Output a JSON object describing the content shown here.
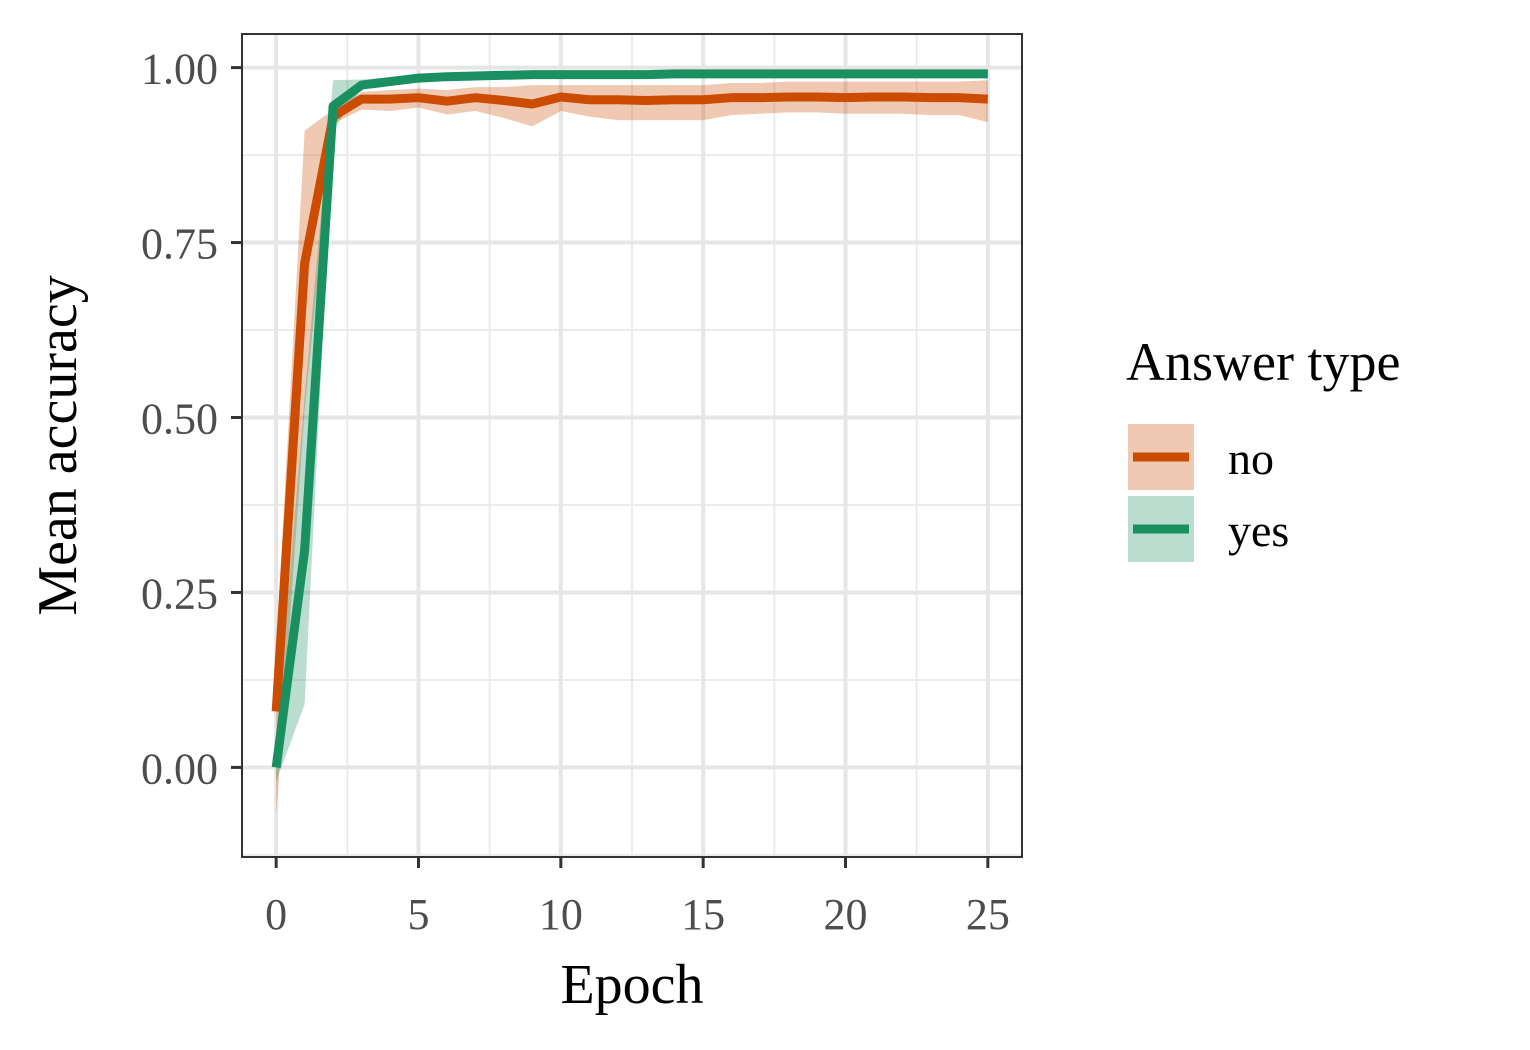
{
  "chart_data": {
    "type": "line",
    "xlabel": "Epoch",
    "ylabel": "Mean accuracy",
    "xlim": [
      -1.2,
      26.2
    ],
    "ylim": [
      -0.128,
      1.048
    ],
    "x_ticks": [
      0,
      5,
      10,
      15,
      20,
      25
    ],
    "x_tick_labels": [
      "0",
      "5",
      "10",
      "15",
      "20",
      "25"
    ],
    "y_ticks": [
      0,
      0.25,
      0.5,
      0.75,
      1.0
    ],
    "y_tick_labels": [
      "0.00",
      "0.25",
      "0.50",
      "0.75",
      "1.00"
    ],
    "grid": true,
    "legend": {
      "title": "Answer type",
      "placement": "right"
    },
    "x": [
      0,
      1,
      2,
      3,
      4,
      5,
      6,
      7,
      8,
      9,
      10,
      11,
      12,
      13,
      14,
      15,
      16,
      17,
      18,
      19,
      20,
      21,
      22,
      23,
      24,
      25
    ],
    "series": [
      {
        "name": "no",
        "color": "#cc4c02",
        "band_color": "#cc4c02",
        "values": [
          0.08,
          0.72,
          0.93,
          0.955,
          0.955,
          0.957,
          0.952,
          0.957,
          0.953,
          0.948,
          0.958,
          0.954,
          0.954,
          0.953,
          0.954,
          0.954,
          0.957,
          0.957,
          0.958,
          0.958,
          0.957,
          0.958,
          0.958,
          0.957,
          0.957,
          0.955
        ],
        "lower": [
          -0.07,
          0.51,
          0.92,
          0.94,
          0.938,
          0.943,
          0.933,
          0.938,
          0.928,
          0.916,
          0.938,
          0.93,
          0.925,
          0.925,
          0.925,
          0.925,
          0.932,
          0.934,
          0.936,
          0.936,
          0.934,
          0.934,
          0.934,
          0.932,
          0.932,
          0.922
        ],
        "upper": [
          0.17,
          0.91,
          0.94,
          0.965,
          0.968,
          0.97,
          0.968,
          0.972,
          0.972,
          0.975,
          0.975,
          0.975,
          0.975,
          0.975,
          0.975,
          0.975,
          0.978,
          0.978,
          0.98,
          0.98,
          0.98,
          0.98,
          0.98,
          0.98,
          0.98,
          0.982
        ]
      },
      {
        "name": "yes",
        "color": "#1a9060",
        "band_color": "#1a9060",
        "values": [
          0.0,
          0.31,
          0.945,
          0.975,
          0.98,
          0.985,
          0.987,
          0.988,
          0.989,
          0.99,
          0.99,
          0.99,
          0.99,
          0.99,
          0.991,
          0.991,
          0.991,
          0.991,
          0.991,
          0.991,
          0.991,
          0.991,
          0.991,
          0.991,
          0.991,
          0.991
        ],
        "lower": [
          -0.02,
          0.09,
          0.91,
          0.97,
          0.976,
          0.981,
          0.984,
          0.986,
          0.987,
          0.988,
          0.988,
          0.988,
          0.988,
          0.988,
          0.989,
          0.989,
          0.989,
          0.989,
          0.989,
          0.989,
          0.989,
          0.989,
          0.989,
          0.989,
          0.989,
          0.989
        ],
        "upper": [
          0.04,
          0.53,
          0.982,
          0.983,
          0.986,
          0.99,
          0.991,
          0.992,
          0.993,
          0.993,
          0.993,
          0.993,
          0.993,
          0.993,
          0.994,
          0.994,
          0.994,
          0.994,
          0.994,
          0.994,
          0.994,
          0.994,
          0.994,
          0.994,
          0.994,
          0.994
        ]
      }
    ]
  }
}
